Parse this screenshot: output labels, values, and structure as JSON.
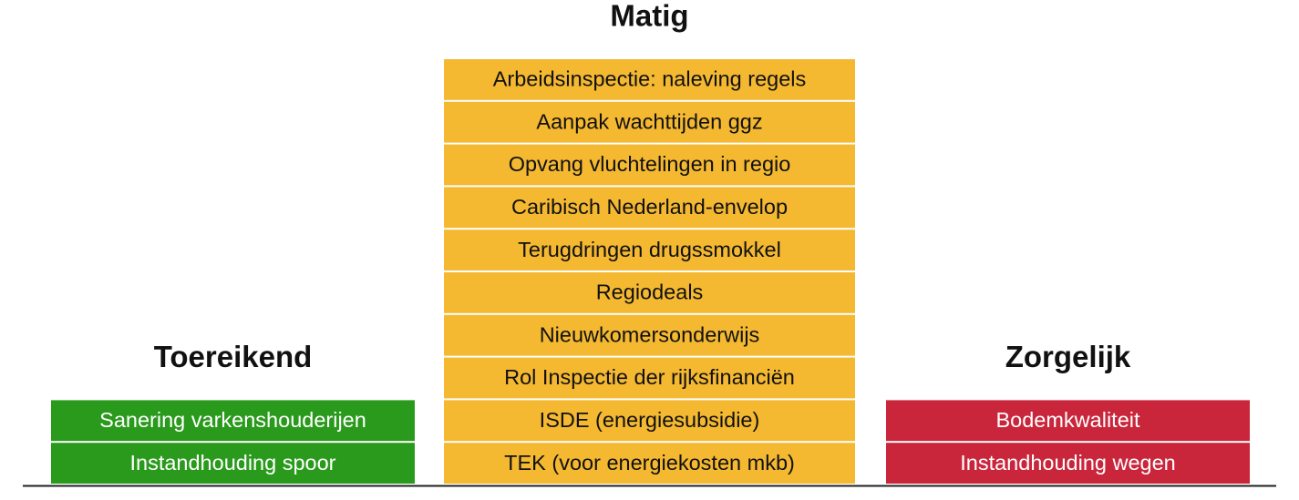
{
  "columns": [
    {
      "title": "Toereikend",
      "color": "#2a9a1c",
      "text_color": "#ffffff",
      "items": [
        "Sanering varkenshouderijen",
        "Instandhouding spoor"
      ]
    },
    {
      "title": "Matig",
      "color": "#f4b831",
      "text_color": "#111111",
      "items": [
        "Arbeidsinspectie: naleving regels",
        "Aanpak wachttijden ggz",
        "Opvang vluchtelingen in regio",
        "Caribisch Nederland-envelop",
        "Terugdringen drugssmokkel",
        "Regiodeals",
        "Nieuwkomersonderwijs",
        "Rol Inspectie der rijksfinanciën",
        "ISDE (energiesubsidie)",
        "TEK (voor energiekosten mkb)"
      ]
    },
    {
      "title": "Zorgelijk",
      "color": "#c9263b",
      "text_color": "#ffffff",
      "items": [
        "Bodemkwaliteit",
        "Instandhouding wegen"
      ]
    }
  ]
}
